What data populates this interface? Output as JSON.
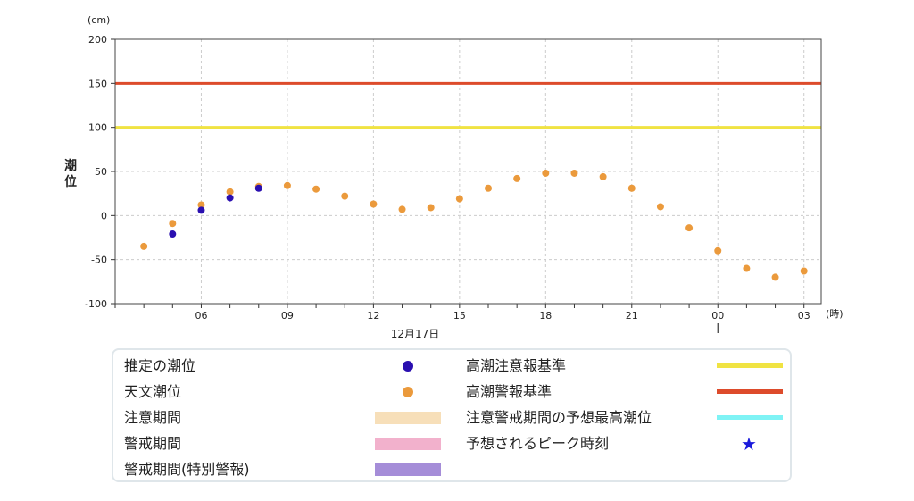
{
  "chart_data": {
    "type": "scatter",
    "y_unit": "(cm)",
    "x_unit": "(時)",
    "ylabel": "潮位",
    "ylim": [
      -100,
      200
    ],
    "yticks": [
      200,
      150,
      100,
      50,
      0,
      -50,
      -100
    ],
    "xlim": [
      3,
      27.6
    ],
    "xticks": [
      {
        "hour": 6,
        "label": "06"
      },
      {
        "hour": 9,
        "label": "09"
      },
      {
        "hour": 12,
        "label": "12"
      },
      {
        "hour": 15,
        "label": "15"
      },
      {
        "hour": 18,
        "label": "18"
      },
      {
        "hour": 21,
        "label": "21"
      },
      {
        "hour": 24,
        "label": "00"
      },
      {
        "hour": 27,
        "label": "03"
      }
    ],
    "date_label": "12月17日",
    "grid": true,
    "series": [
      {
        "name": "天文潮位",
        "color": "#eb9a3c",
        "points": [
          [
            4,
            -35
          ],
          [
            5,
            -9
          ],
          [
            6,
            12
          ],
          [
            7,
            27
          ],
          [
            8,
            33
          ],
          [
            9,
            34
          ],
          [
            10,
            30
          ],
          [
            11,
            22
          ],
          [
            12,
            13
          ],
          [
            13,
            7
          ],
          [
            14,
            9
          ],
          [
            15,
            19
          ],
          [
            16,
            31
          ],
          [
            17,
            42
          ],
          [
            18,
            48
          ],
          [
            19,
            48
          ],
          [
            20,
            44
          ],
          [
            21,
            31
          ],
          [
            22,
            10
          ],
          [
            23,
            -14
          ],
          [
            24,
            -40
          ],
          [
            25,
            -60
          ],
          [
            26,
            -70
          ],
          [
            27,
            -63
          ]
        ]
      },
      {
        "name": "推定の潮位",
        "color": "#2a0fb0",
        "points": [
          [
            5,
            -21
          ],
          [
            6,
            6
          ],
          [
            7,
            20
          ],
          [
            8,
            31
          ]
        ]
      }
    ],
    "thresholds": [
      {
        "name": "高潮注意報基準",
        "value": 100,
        "color": "#f0e342"
      },
      {
        "name": "高潮警報基準",
        "value": 150,
        "color": "#dd4b2b"
      }
    ]
  },
  "legend": {
    "items_left": [
      {
        "label": "推定の潮位",
        "kind": "dot",
        "color": "#2a0fb0"
      },
      {
        "label": "天文潮位",
        "kind": "dot",
        "color": "#eb9a3c"
      },
      {
        "label": "注意期間",
        "kind": "rect",
        "color": "#f7dfb9"
      },
      {
        "label": "警戒期間",
        "kind": "rect",
        "color": "#f2b1cc"
      },
      {
        "label": "警戒期間(特別警報)",
        "kind": "rect",
        "color": "#a58dd8"
      }
    ],
    "items_right": [
      {
        "label": "高潮注意報基準",
        "kind": "line",
        "color": "#f0e342"
      },
      {
        "label": "高潮警報基準",
        "kind": "line",
        "color": "#dd4b2b"
      },
      {
        "label": "注意警戒期間の予想最高潮位",
        "kind": "line",
        "color": "#7ff3f5"
      },
      {
        "label": "予想されるピーク時刻",
        "kind": "star",
        "color": "#1a1adb",
        "symbol": "★"
      }
    ]
  }
}
